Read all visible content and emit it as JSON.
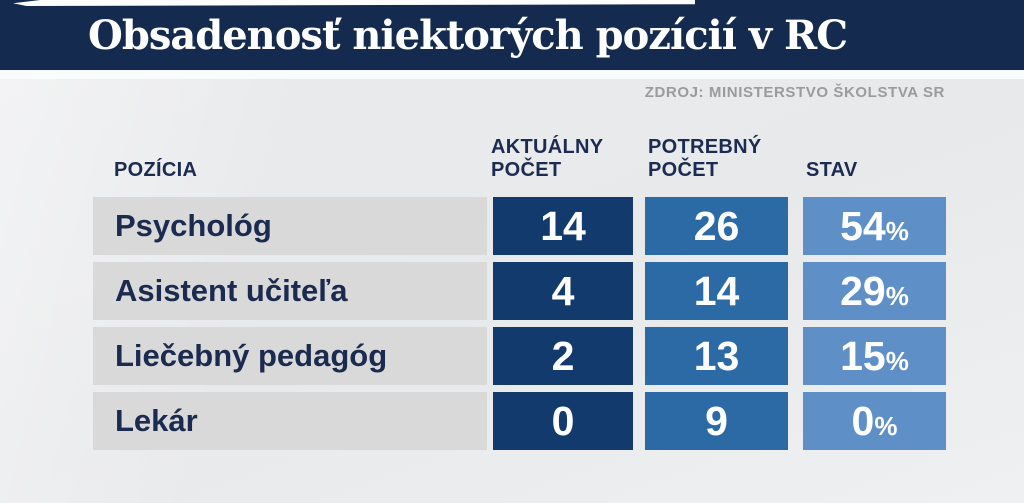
{
  "title": "Obsadenosť niektorých pozícií v RC",
  "source": "ZDROJ: MINISTERSTVO ŠKOLSTVA SR",
  "table": {
    "headers": {
      "position": "POZÍCIA",
      "current_line1": "AKTUÁLNY",
      "current_line2": "POČET",
      "needed_line1": "POTREBNÝ",
      "needed_line2": "POČET",
      "status": "STAV"
    },
    "rows": [
      {
        "position": "Psychológ",
        "current": "14",
        "needed": "26",
        "status": "54",
        "percent": "%"
      },
      {
        "position": "Asistent učiteľa",
        "current": "4",
        "needed": "14",
        "status": "29",
        "percent": "%"
      },
      {
        "position": "Liečebný pedagóg",
        "current": "2",
        "needed": "13",
        "status": "15",
        "percent": "%"
      },
      {
        "position": "Lekár",
        "current": "0",
        "needed": "9",
        "status": "0",
        "percent": "%"
      }
    ]
  },
  "colors": {
    "title_bar": "#152a4f",
    "cell_current": "#123a6c",
    "cell_needed": "#2c6aa6",
    "cell_status": "#5e8fc6",
    "label_band": "#d9d9d9",
    "text_navy": "#1b2a4f",
    "source_gray": "#9b9b9b",
    "background": "#e9eaec"
  },
  "chart_data": {
    "type": "table",
    "title": "Obsadenosť niektorých pozícií v RC",
    "source": "ZDROJ: MINISTERSTVO ŠKOLSTVA SR",
    "columns": [
      "POZÍCIA",
      "AKTUÁLNY POČET",
      "POTREBNÝ POČET",
      "STAV"
    ],
    "rows": [
      [
        "Psychológ",
        14,
        26,
        "54%"
      ],
      [
        "Asistent učiteľa",
        4,
        14,
        "29%"
      ],
      [
        "Liečebný pedagóg",
        2,
        13,
        "15%"
      ],
      [
        "Lekár",
        0,
        9,
        "0%"
      ]
    ]
  }
}
